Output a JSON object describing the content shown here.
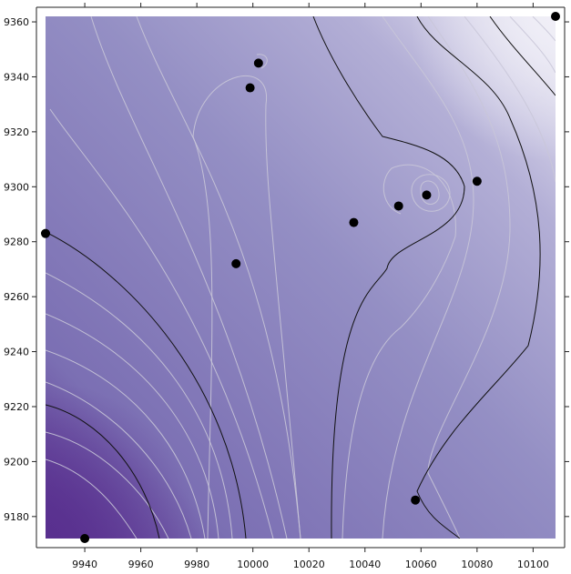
{
  "chart_data": {
    "type": "scatter",
    "title": "",
    "xlabel": "",
    "ylabel": "",
    "xlim": [
      9926,
      10108
    ],
    "ylim": [
      9172,
      9362
    ],
    "x_ticks": [
      9940,
      9960,
      9980,
      10000,
      10020,
      10040,
      10060,
      10080,
      10100
    ],
    "y_ticks": [
      9180,
      9200,
      9220,
      9240,
      9260,
      9280,
      9300,
      9320,
      9340,
      9360
    ],
    "points": [
      {
        "x": 10108,
        "y": 9362
      },
      {
        "x": 10002,
        "y": 9345
      },
      {
        "x": 9999,
        "y": 9336
      },
      {
        "x": 10080,
        "y": 9302
      },
      {
        "x": 10062,
        "y": 9297
      },
      {
        "x": 10052,
        "y": 9293
      },
      {
        "x": 10036,
        "y": 9287
      },
      {
        "x": 9926,
        "y": 9283
      },
      {
        "x": 9994,
        "y": 9272
      },
      {
        "x": 10058,
        "y": 9186
      },
      {
        "x": 9940,
        "y": 9172
      }
    ],
    "colors": {
      "low": "#59308f",
      "mid": "#948fc4",
      "high": "#e8e6f3",
      "point": "#000000"
    },
    "grid": false,
    "legend": "none"
  }
}
